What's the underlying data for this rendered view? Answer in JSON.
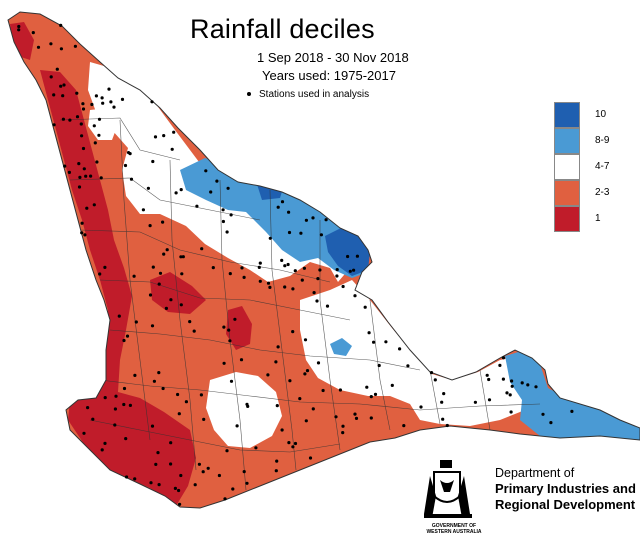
{
  "title": "Rainfall deciles",
  "period": "1 Sep 2018 - 30 Nov 2018",
  "years_used": "Years used: 1975-2017",
  "stations_note": "Stations used in analysis",
  "legend": [
    {
      "label": "10",
      "color": "#1f5fb0"
    },
    {
      "label": "8-9",
      "color": "#4a9ad4"
    },
    {
      "label": "4-7",
      "color": "#ffffff"
    },
    {
      "label": "2-3",
      "color": "#e06040"
    },
    {
      "label": "1",
      "color": "#c01c2a"
    }
  ],
  "logo": {
    "line1": "Department of",
    "line2": "Primary Industries and",
    "line3": "Regional Development",
    "gov1": "GOVERNMENT OF",
    "gov2": "WESTERN AUSTRALIA"
  },
  "colors": {
    "decile_10": "#1f5fb0",
    "decile_8_9": "#4a9ad4",
    "decile_4_7": "#ffffff",
    "decile_2_3": "#e06040",
    "decile_1": "#c01c2a",
    "boundary": "#333333"
  }
}
